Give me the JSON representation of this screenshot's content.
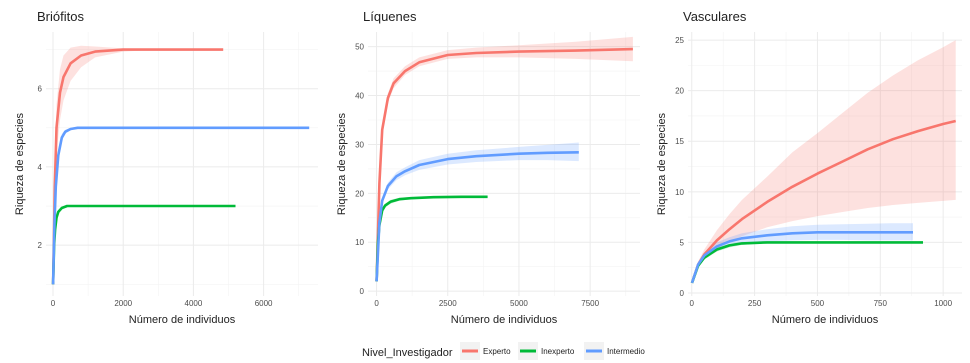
{
  "colors": {
    "Experto": "#f8766d",
    "Inexperto": "#00ba38",
    "Intermedio": "#619cff",
    "grid": "#ebebeb"
  },
  "legend": {
    "title": "Nivel_Investigador",
    "entries": [
      "Experto",
      "Inexperto",
      "Intermedio"
    ],
    "placement": "bottom"
  },
  "chart_data": [
    {
      "type": "line",
      "title": "Briófitos",
      "xlabel": "Número de individuos",
      "ylabel": "Riqueza de especies",
      "xlim": [
        -200,
        7550
      ],
      "ylim": [
        0.7,
        7.45
      ],
      "xticks": [
        0,
        2000,
        4000,
        6000
      ],
      "yticks": [
        2,
        4,
        6
      ],
      "grid": true,
      "series": [
        {
          "name": "Experto",
          "x": [
            1,
            50,
            100,
            200,
            300,
            500,
            800,
            1200,
            2000,
            3000,
            4000,
            4850
          ],
          "y": [
            1,
            3.5,
            5.0,
            5.9,
            6.3,
            6.65,
            6.85,
            6.95,
            7.0,
            7.0,
            7.0,
            7.0
          ],
          "lower": [
            1,
            3.0,
            4.3,
            5.2,
            5.7,
            6.2,
            6.55,
            6.8,
            6.95,
            7.0,
            7.0,
            7.0
          ],
          "upper": [
            1,
            4.0,
            5.6,
            6.5,
            6.85,
            7.05,
            7.1,
            7.08,
            7.03,
            7.0,
            7.0,
            7.0
          ]
        },
        {
          "name": "Inexperto",
          "x": [
            1,
            30,
            60,
            100,
            150,
            250,
            400,
            600,
            1000,
            2000,
            3000,
            4000,
            5200
          ],
          "y": [
            1,
            2.0,
            2.4,
            2.7,
            2.85,
            2.95,
            3.0,
            3.0,
            3.0,
            3.0,
            3.0,
            3.0,
            3.0
          ],
          "lower": [
            1,
            1.9,
            2.3,
            2.6,
            2.8,
            2.92,
            2.98,
            3.0,
            3.0,
            3.0,
            3.0,
            3.0,
            3.0
          ],
          "upper": [
            1,
            2.1,
            2.5,
            2.8,
            2.9,
            2.98,
            3.02,
            3.0,
            3.0,
            3.0,
            3.0,
            3.0,
            3.0
          ]
        },
        {
          "name": "Intermedio",
          "x": [
            1,
            40,
            80,
            150,
            250,
            350,
            500,
            700,
            1000,
            2000,
            4000,
            6000,
            7300
          ],
          "y": [
            1,
            2.5,
            3.5,
            4.3,
            4.75,
            4.9,
            4.97,
            5.0,
            5.0,
            5.0,
            5.0,
            5.0,
            5.0
          ],
          "lower": [
            1,
            2.4,
            3.4,
            4.2,
            4.65,
            4.85,
            4.94,
            4.98,
            5.0,
            5.0,
            5.0,
            5.0,
            5.0
          ],
          "upper": [
            1,
            2.6,
            3.6,
            4.4,
            4.85,
            4.95,
            5.0,
            5.02,
            5.0,
            5.0,
            5.0,
            5.0,
            5.0
          ]
        }
      ]
    },
    {
      "type": "line",
      "title": "Líquenes",
      "xlabel": "Número de individuos",
      "ylabel": "Riqueza de especies",
      "xlim": [
        -300,
        9250
      ],
      "ylim": [
        -1,
        53
      ],
      "xticks": [
        0,
        2500,
        5000,
        7500
      ],
      "yticks": [
        0,
        10,
        20,
        30,
        40,
        50
      ],
      "grid": true,
      "series": [
        {
          "name": "Experto",
          "x": [
            1,
            100,
            200,
            400,
            600,
            1000,
            1500,
            2500,
            3500,
            5000,
            7000,
            9000
          ],
          "y": [
            2,
            22,
            33,
            39.5,
            42.5,
            45,
            46.8,
            48.3,
            48.7,
            49,
            49.2,
            49.5
          ],
          "lower": [
            2,
            21,
            32,
            38.5,
            41.5,
            44.2,
            46,
            47.5,
            47.8,
            47.8,
            47.5,
            47
          ],
          "upper": [
            2,
            23,
            34,
            40.5,
            43.5,
            46,
            47.8,
            49.3,
            49.8,
            50.3,
            51,
            52
          ]
        },
        {
          "name": "Inexperto",
          "x": [
            1,
            50,
            100,
            200,
            300,
            500,
            800,
            1200,
            2000,
            3000,
            3900
          ],
          "y": [
            2,
            10,
            13.5,
            16.5,
            17.5,
            18.3,
            18.8,
            19,
            19.2,
            19.3,
            19.3
          ],
          "lower": [
            2,
            9.5,
            13,
            16,
            17.1,
            17.9,
            18.5,
            18.8,
            19,
            19.1,
            19.1
          ],
          "upper": [
            2,
            10.5,
            14,
            17,
            17.9,
            18.7,
            19.1,
            19.2,
            19.4,
            19.5,
            19.5
          ]
        },
        {
          "name": "Intermedio",
          "x": [
            1,
            100,
            200,
            400,
            700,
            1000,
            1500,
            2500,
            3500,
            5000,
            6000,
            7100
          ],
          "y": [
            2,
            14,
            18.5,
            21.5,
            23.5,
            24.5,
            25.8,
            27,
            27.6,
            28.1,
            28.3,
            28.4
          ],
          "lower": [
            2,
            13.5,
            18,
            20.8,
            22.7,
            23.7,
            24.8,
            25.9,
            26.4,
            26.8,
            26.8,
            26.6
          ],
          "upper": [
            2,
            14.5,
            19,
            22.2,
            24.3,
            25.3,
            26.8,
            28.1,
            28.8,
            29.5,
            29.9,
            30.4
          ]
        }
      ]
    },
    {
      "type": "line",
      "title": "Vasculares",
      "xlabel": "Número de individuos",
      "ylabel": "Riqueza de especies",
      "xlim": [
        -15,
        1075
      ],
      "ylim": [
        -0.3,
        25.8
      ],
      "xticks": [
        0,
        250,
        500,
        750,
        1000
      ],
      "yticks": [
        0,
        5,
        10,
        15,
        20,
        25
      ],
      "grid": true,
      "series": [
        {
          "name": "Experto",
          "x": [
            1,
            25,
            50,
            100,
            150,
            200,
            300,
            400,
            500,
            600,
            700,
            800,
            900,
            1000,
            1050
          ],
          "y": [
            1,
            2.8,
            3.8,
            5.2,
            6.3,
            7.3,
            9,
            10.5,
            11.8,
            13,
            14.2,
            15.2,
            16,
            16.7,
            17
          ],
          "lower": [
            1,
            2.5,
            3.3,
            4.4,
            5.1,
            5.6,
            6.5,
            7.1,
            7.6,
            8,
            8.4,
            8.7,
            8.9,
            9.1,
            9.2
          ],
          "upper": [
            1,
            3.1,
            4.3,
            6.2,
            7.8,
            9.2,
            11.5,
            13.9,
            15.8,
            17.8,
            19.8,
            21.5,
            23,
            24.3,
            25
          ]
        },
        {
          "name": "Inexperto",
          "x": [
            1,
            25,
            50,
            100,
            150,
            200,
            300,
            400,
            600,
            800,
            920
          ],
          "y": [
            1,
            2.7,
            3.5,
            4.3,
            4.7,
            4.9,
            5,
            5,
            5,
            5,
            5
          ],
          "lower": [
            1,
            2.5,
            3.3,
            4.1,
            4.5,
            4.75,
            4.95,
            5,
            5,
            5,
            5
          ],
          "upper": [
            1,
            2.9,
            3.7,
            4.5,
            4.85,
            5.05,
            5.05,
            5,
            5,
            5,
            5
          ]
        },
        {
          "name": "Intermedio",
          "x": [
            1,
            25,
            50,
            100,
            150,
            200,
            300,
            400,
            500,
            600,
            700,
            800,
            880
          ],
          "y": [
            1,
            2.8,
            3.7,
            4.6,
            5.1,
            5.4,
            5.7,
            5.9,
            6,
            6,
            6,
            6,
            6
          ],
          "lower": [
            1,
            2.6,
            3.4,
            4.3,
            4.7,
            4.9,
            5.1,
            5.2,
            5.25,
            5.25,
            5.2,
            5.2,
            5.2
          ],
          "upper": [
            1,
            3.0,
            4.0,
            5.0,
            5.5,
            5.9,
            6.3,
            6.6,
            6.75,
            6.8,
            6.85,
            6.9,
            6.9
          ]
        }
      ]
    }
  ]
}
